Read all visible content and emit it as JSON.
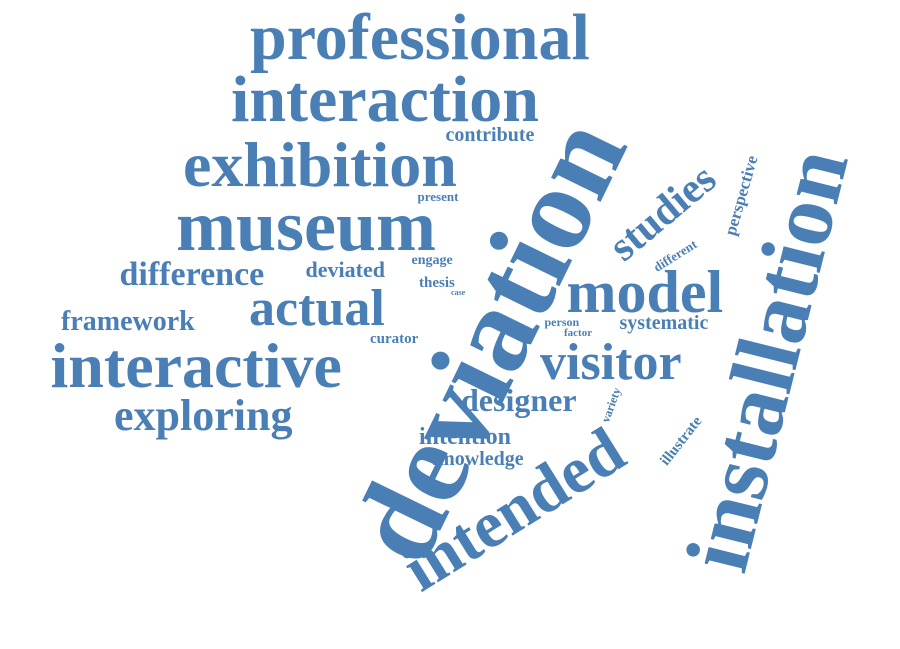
{
  "color": "#4a7fb5",
  "words": [
    {
      "id": "professional",
      "text": "professional"
    },
    {
      "id": "interaction",
      "text": "interaction"
    },
    {
      "id": "exhibition",
      "text": "exhibition"
    },
    {
      "id": "museum",
      "text": "museum"
    },
    {
      "id": "contribute",
      "text": "contribute"
    },
    {
      "id": "present",
      "text": "present"
    },
    {
      "id": "difference",
      "text": "difference"
    },
    {
      "id": "deviated",
      "text": "deviated"
    },
    {
      "id": "engage",
      "text": "engage"
    },
    {
      "id": "thesis",
      "text": "thesis"
    },
    {
      "id": "case",
      "text": "case"
    },
    {
      "id": "actual",
      "text": "actual"
    },
    {
      "id": "framework",
      "text": "framework"
    },
    {
      "id": "interactive",
      "text": "interactive"
    },
    {
      "id": "curator",
      "text": "curator"
    },
    {
      "id": "exploring",
      "text": "exploring"
    },
    {
      "id": "deviation",
      "text": "deviation"
    },
    {
      "id": "studies",
      "text": "studies"
    },
    {
      "id": "model",
      "text": "model"
    },
    {
      "id": "different",
      "text": "different"
    },
    {
      "id": "perspective",
      "text": "perspective"
    },
    {
      "id": "installation",
      "text": "installation"
    },
    {
      "id": "person",
      "text": "person"
    },
    {
      "id": "factor",
      "text": "factor"
    },
    {
      "id": "systematic",
      "text": "systematic"
    },
    {
      "id": "visitor",
      "text": "visitor"
    },
    {
      "id": "designer",
      "text": "designer"
    },
    {
      "id": "variety",
      "text": "variety"
    },
    {
      "id": "intention",
      "text": "intention"
    },
    {
      "id": "knowledge",
      "text": "knowledge"
    },
    {
      "id": "illustrate",
      "text": "illustrate"
    },
    {
      "id": "intended",
      "text": "intended"
    }
  ]
}
